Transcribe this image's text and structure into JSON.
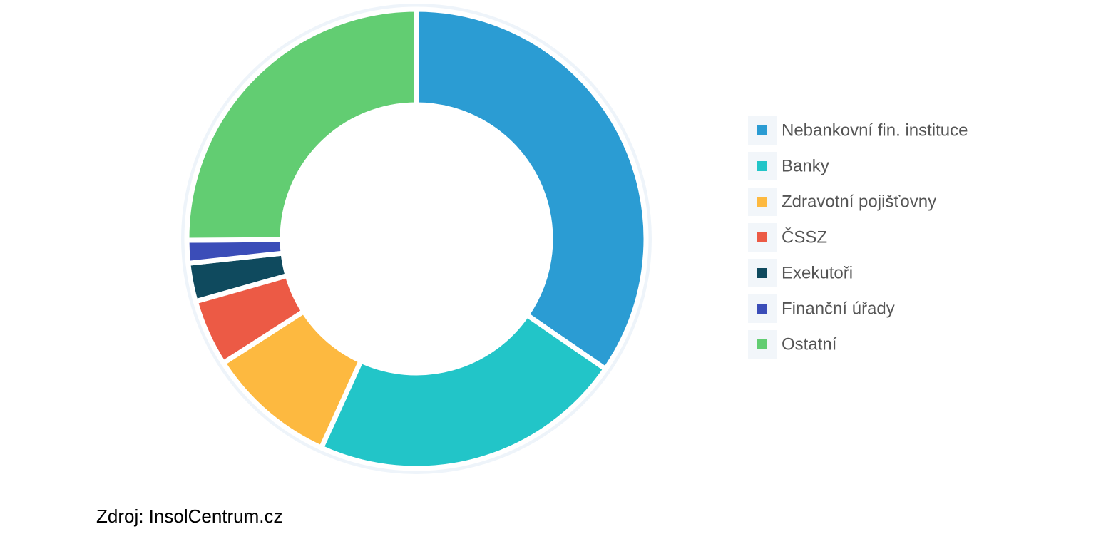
{
  "chart_data": {
    "type": "pie",
    "categories": [
      "Nebankovní fin. instituce",
      "Banky",
      "Zdravotní pojišťovny",
      "ČSSZ",
      "Exekutoři",
      "Finanční úřady",
      "Ostatní"
    ],
    "values": [
      34.6,
      22.2,
      9.1,
      4.7,
      2.7,
      1.6,
      25.1
    ],
    "colors": [
      "#2b9cd3",
      "#22c5c8",
      "#fdb940",
      "#ec5a45",
      "#0f4a5e",
      "#3b4db8",
      "#62cd72"
    ],
    "source": "Zdroj: InsolCentrum.cz"
  }
}
